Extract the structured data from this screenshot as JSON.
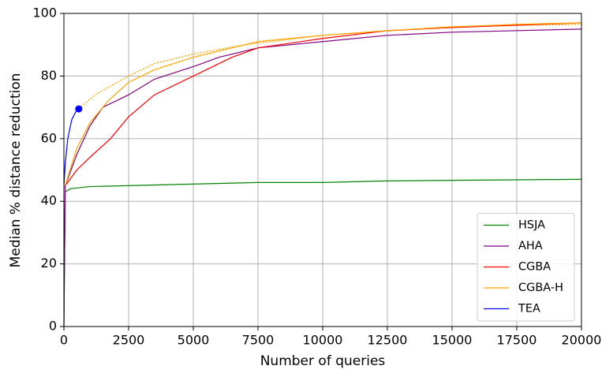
{
  "chart_data": {
    "type": "line",
    "xlabel": "Number of queries",
    "ylabel": "Median % distance reduction",
    "xlim": [
      0,
      20000
    ],
    "ylim": [
      0,
      100
    ],
    "xticks": [
      0,
      2500,
      5000,
      7500,
      10000,
      12500,
      15000,
      17500,
      20000
    ],
    "yticks": [
      0,
      20,
      40,
      60,
      80,
      100
    ],
    "grid": true,
    "legend": "lower right",
    "series": [
      {
        "name": "HSJA",
        "color": "#008000",
        "x": [
          0,
          50,
          250,
          1000,
          2500,
          5000,
          7500,
          10000,
          12500,
          15000,
          20000
        ],
        "values": [
          0,
          43,
          44,
          44.7,
          45,
          45.5,
          46,
          46,
          46.5,
          46.7,
          47
        ]
      },
      {
        "name": "AHA",
        "color": "#800080",
        "x": [
          0,
          50,
          500,
          1000,
          1500,
          2500,
          3500,
          5000,
          6000,
          7500,
          10000,
          12500,
          15000,
          20000
        ],
        "values": [
          0,
          45,
          55,
          64,
          70,
          74,
          79,
          83,
          86,
          89,
          91,
          93,
          94,
          95
        ]
      },
      {
        "name": "CGBA",
        "color": "#ff0000",
        "x": [
          50,
          500,
          1000,
          1800,
          2500,
          3500,
          5000,
          6500,
          7500,
          10000,
          12500,
          15000,
          20000
        ],
        "values": [
          45,
          50,
          54,
          60,
          67,
          74,
          80,
          86,
          89,
          92,
          94.5,
          95.5,
          97
        ]
      },
      {
        "name": "CGBA-H",
        "color": "#ffa500",
        "x": [
          50,
          500,
          1000,
          1700,
          2500,
          3500,
          5000,
          6500,
          7500,
          10000,
          12500,
          15000,
          17500,
          20000
        ],
        "values": [
          45,
          57,
          65,
          72,
          78,
          82,
          86,
          89,
          91,
          93,
          94.5,
          95.7,
          96.5,
          97
        ]
      },
      {
        "name": "TEA",
        "color": "#0000ff",
        "end_marker": true,
        "x": [
          0,
          50,
          150,
          300,
          450,
          575
        ],
        "values": [
          45,
          52,
          60,
          66,
          68.5,
          69.5
        ]
      }
    ],
    "projection": {
      "color": "#ffa500",
      "dashed": true,
      "x": [
        575,
        1200,
        2500,
        3500,
        5000,
        7000,
        10000,
        15000,
        20000
      ],
      "values": [
        69.5,
        74,
        80,
        84,
        87,
        90,
        93,
        95.8,
        96.5
      ]
    }
  }
}
